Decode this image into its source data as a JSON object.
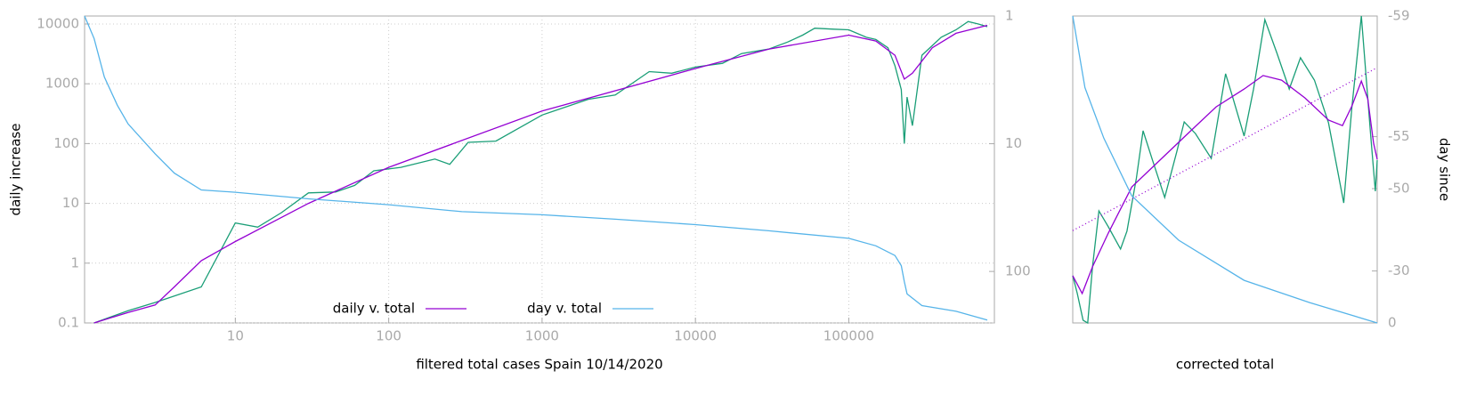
{
  "chart_data": [
    {
      "type": "line",
      "xlabel": "filtered total cases Spain 10/14/2020",
      "ylabel": "daily increase",
      "log_x": true,
      "log_y": true,
      "log_y2": true,
      "y2_reversed": true,
      "grid": true,
      "legend": "lower center",
      "xlim": [
        1.04,
        890000
      ],
      "xticks": [
        10,
        100,
        1000,
        10000,
        100000
      ],
      "ylim": [
        0.1,
        13600
      ],
      "yticks": [
        0.1,
        1,
        10,
        100,
        1000,
        10000
      ],
      "y2lim": [
        1,
        253
      ],
      "y2ticks": [
        1,
        10,
        100
      ],
      "series": [
        {
          "color": "#1a9e77",
          "x": [
            1.2,
            2,
            3,
            6,
            10,
            14,
            20,
            30,
            45,
            60,
            80,
            120,
            200,
            250,
            330,
            500,
            1000,
            2000,
            3000,
            5000,
            7000,
            10000,
            15000,
            20000,
            30000,
            40000,
            50000,
            60000,
            80000,
            100000,
            130000,
            150000,
            180000,
            200000,
            220000,
            230000,
            240000,
            260000,
            300000,
            400000,
            500000,
            600000,
            700000,
            800000
          ],
          "values": [
            0.1,
            0.16,
            0.22,
            0.4,
            4.7,
            4.0,
            7,
            15,
            15.5,
            20,
            35,
            40,
            55,
            45,
            105,
            110,
            300,
            550,
            650,
            1600,
            1500,
            1900,
            2200,
            3200,
            3800,
            5000,
            6500,
            8500,
            8200,
            8000,
            6000,
            5500,
            4000,
            2000,
            800,
            100,
            600,
            200,
            3000,
            6000,
            8000,
            11000,
            10000,
            9000
          ]
        },
        {
          "name": "daily v. total",
          "color": "#9400d3",
          "x": [
            1.2,
            2,
            3,
            4,
            6,
            10,
            30,
            100,
            1000,
            10000,
            30000,
            100000,
            150000,
            200000,
            230000,
            260000,
            350000,
            500000,
            800000
          ],
          "values": [
            0.1,
            0.15,
            0.2,
            0.4,
            1.1,
            2.3,
            10,
            40,
            350,
            1800,
            3800,
            6500,
            5200,
            3000,
            1200,
            1500,
            4000,
            7000,
            9500
          ]
        },
        {
          "name": "day v. total",
          "color": "#56b4e9",
          "axis": "y2",
          "x": [
            1.04,
            1.2,
            1.4,
            1.7,
            2,
            3,
            4,
            6,
            10,
            30,
            100,
            300,
            1000,
            3000,
            10000,
            30000,
            100000,
            150000,
            200000,
            220000,
            230000,
            240000,
            300000,
            500000,
            800000
          ],
          "values": [
            1,
            1.5,
            3,
            5,
            7,
            12,
            17,
            23,
            24,
            27,
            30,
            34,
            36,
            39,
            43,
            48,
            55,
            63,
            75,
            90,
            120,
            150,
            185,
            205,
            240
          ]
        }
      ]
    },
    {
      "type": "line",
      "xlabel": "corrected total",
      "y2label": "day since",
      "grid": false,
      "xlim": [
        0,
        100
      ],
      "ylim": [
        0,
        100
      ],
      "y2lim": [
        -59,
        0
      ],
      "y2ticks": [
        -59,
        -55,
        -50,
        -30,
        0
      ],
      "log_y2": true,
      "y2_offset": 60,
      "y2_reversed": true,
      "series": [
        {
          "color": "#1a9e77",
          "x": [
            0,
            1.5,
            3.4,
            4.9,
            6.5,
            8.6,
            11.7,
            15.7,
            17.8,
            20.9,
            23.1,
            26.2,
            30.2,
            34.2,
            36.6,
            40.3,
            45.5,
            50.2,
            52.6,
            56.3,
            59.4,
            63.1,
            67.1,
            71.1,
            74.8,
            79.4,
            84,
            89,
            91.7,
            94.8,
            97.8,
            99.4,
            100
          ],
          "values": [
            15.4,
            9.6,
            0.9,
            0,
            18.3,
            36.5,
            31.3,
            24.1,
            29.9,
            47.2,
            62.6,
            53,
            40.9,
            55.9,
            65.5,
            61.7,
            53.6,
            81.2,
            73.3,
            60.9,
            76.2,
            98.8,
            87.8,
            76.2,
            86.4,
            79.1,
            65.2,
            39.1,
            70.4,
            100,
            61.7,
            42.9,
            53
          ]
        },
        {
          "color": "#9400d3",
          "x": [
            0,
            3.1,
            6.5,
            11.7,
            19.4,
            28.6,
            37.8,
            47.1,
            56.3,
            62.5,
            68.6,
            76.3,
            84,
            88.6,
            91.7,
            94.8,
            96.9,
            98.8,
            100
          ],
          "values": [
            15.4,
            9.6,
            18.3,
            29.3,
            44.3,
            53,
            61.7,
            70.4,
            76.2,
            80.6,
            79.1,
            73.3,
            66.1,
            64.3,
            70.7,
            78.8,
            73,
            58.6,
            53.3
          ]
        },
        {
          "color": "#9400d3",
          "dash": "dotted",
          "x": [
            0,
            100
          ],
          "values": [
            30.1,
            83.2
          ]
        },
        {
          "color": "#56b4e9",
          "axis": "y2",
          "x": [
            0,
            4,
            10.2,
            19.4,
            34.8,
            56.3,
            77.8,
            100
          ],
          "values": [
            -59,
            -57.4,
            -54.9,
            -49,
            -40.1,
            -26,
            -14.3,
            0
          ]
        }
      ]
    }
  ]
}
